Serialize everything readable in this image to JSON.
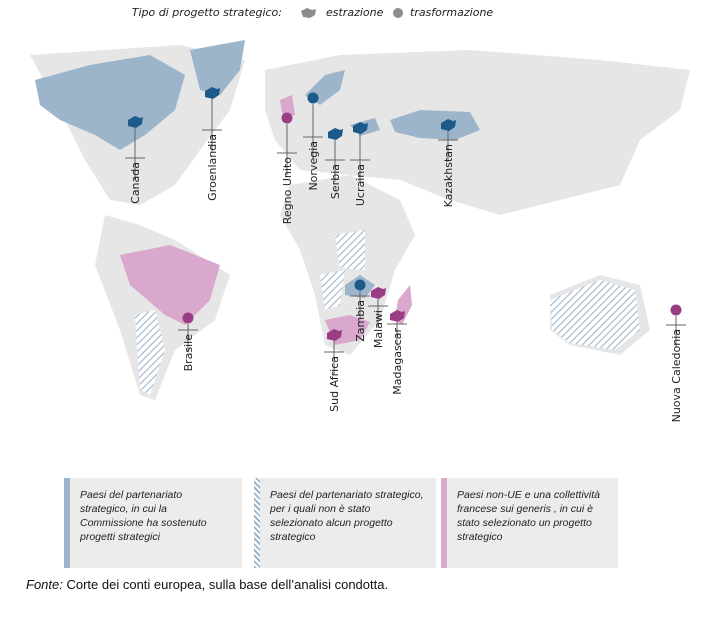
{
  "legend": {
    "title": "Tipo di progetto strategico:",
    "items": [
      "estrazione",
      "trasformazione"
    ]
  },
  "countries": [
    "Canada",
    "Groenlandia",
    "Regno Unito",
    "Norvegia",
    "Serbia",
    "Ucraina",
    "Kazakhstan",
    "Brasile",
    "Zambia",
    "Malawi",
    "Sud Africa",
    "Madagascar",
    "Nuova Caledonia"
  ],
  "categories": [
    "Paesi del partenariato strategico, in cui la Commissione ha sostenuto progetti strategici",
    "Paesi del partenariato strategico, per i quali non è stato selezionato alcun progetto strategico",
    "Paesi non-UE e una collettività francese sui generis , in cui è stato selezionato un progetto strategico"
  ],
  "source": {
    "label": "Fonte:",
    "text": "Corte dei conti europea, sulla base dell’analisi condotta."
  }
}
